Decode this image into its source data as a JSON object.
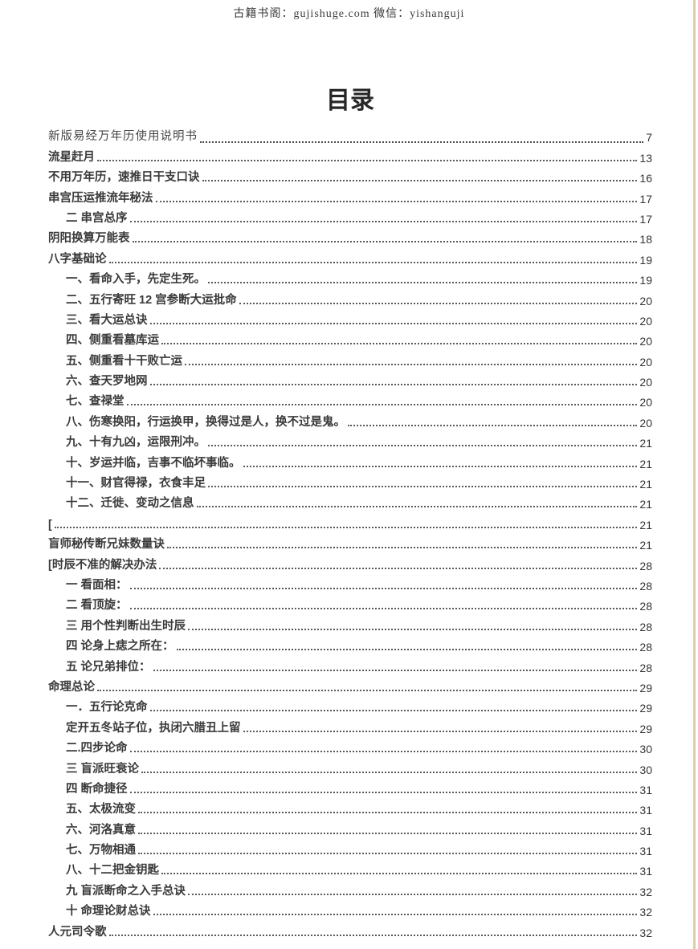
{
  "header": {
    "text": "古籍书阁：gujishuge.com 微信：yishanguji"
  },
  "title": "目录",
  "colors": {
    "page_background": "#ffffff",
    "edge_line": "#d9cfa8",
    "text": "#3a3a3a"
  },
  "toc": [
    {
      "label": "新版易经万年历使用说明书",
      "page": "7",
      "indent": 0,
      "serif": true
    },
    {
      "label": "流星赶月",
      "page": "13",
      "indent": 0
    },
    {
      "label": "不用万年历，速推日干支口诀",
      "page": "16",
      "indent": 0
    },
    {
      "label": "串宫压运推流年秘法",
      "page": "17",
      "indent": 0
    },
    {
      "label": "二 串宫总序",
      "page": "17",
      "indent": 1
    },
    {
      "label": "阴阳换算万能表",
      "page": "18",
      "indent": 0
    },
    {
      "label": "八字基础论",
      "page": "19",
      "indent": 0
    },
    {
      "label": "一、看命入手，先定生死。",
      "page": "19",
      "indent": 1
    },
    {
      "label": "二、五行寄旺 12 宫参断大运批命",
      "page": "20",
      "indent": 1
    },
    {
      "label": "三、看大运总诀",
      "page": "20",
      "indent": 1
    },
    {
      "label": "四、侧重看墓库运",
      "page": "20",
      "indent": 1
    },
    {
      "label": "五、侧重看十干败亡运",
      "page": "20",
      "indent": 1
    },
    {
      "label": "六、查天罗地网",
      "page": "20",
      "indent": 1
    },
    {
      "label": "七、查禄堂",
      "page": "20",
      "indent": 1
    },
    {
      "label": "八、伤寒换阳，行运换甲，换得过是人，换不过是鬼。",
      "page": "20",
      "indent": 1
    },
    {
      "label": "九、十有九凶，运限刑冲。",
      "page": "21",
      "indent": 1
    },
    {
      "label": "十、岁运并临，吉事不临坏事临。",
      "page": "21",
      "indent": 1
    },
    {
      "label": "十一、财官得禄，衣食丰足",
      "page": "21",
      "indent": 1
    },
    {
      "label": "十二、迁徙、变动之信息",
      "page": "21",
      "indent": 1
    },
    {
      "label": "[",
      "page": "21",
      "indent": 0
    },
    {
      "label": "盲师秘传断兄妹数量诀",
      "page": "21",
      "indent": 0
    },
    {
      "label": "[时辰不准的解决办法",
      "page": "28",
      "indent": 0
    },
    {
      "label": "一 看面相：",
      "page": "28",
      "indent": 1
    },
    {
      "label": "二 看顶旋：",
      "page": "28",
      "indent": 1
    },
    {
      "label": "三 用个性判断出生时辰",
      "page": "28",
      "indent": 1
    },
    {
      "label": "四 论身上痣之所在：",
      "page": "28",
      "indent": 1
    },
    {
      "label": "五 论兄弟排位：",
      "page": "28",
      "indent": 1
    },
    {
      "label": "命理总论",
      "page": "29",
      "indent": 0
    },
    {
      "label": "一．五行论克命",
      "page": "29",
      "indent": 1
    },
    {
      "label": "定开五冬站子位，执闭六腊丑上留",
      "page": "29",
      "indent": 1
    },
    {
      "label": "二.四步论命",
      "page": "30",
      "indent": 1
    },
    {
      "label": "三 盲派旺衰论",
      "page": "30",
      "indent": 1
    },
    {
      "label": "四 断命捷径",
      "page": "31",
      "indent": 1
    },
    {
      "label": "五、太极流变",
      "page": "31",
      "indent": 1
    },
    {
      "label": "六、河洛真意",
      "page": "31",
      "indent": 1
    },
    {
      "label": "七、万物相通",
      "page": "31",
      "indent": 1
    },
    {
      "label": "八、十二把金钥匙",
      "page": "31",
      "indent": 1
    },
    {
      "label": "九 盲派断命之入手总诀",
      "page": "32",
      "indent": 1
    },
    {
      "label": "十 命理论财总诀",
      "page": "32",
      "indent": 1
    },
    {
      "label": "人元司令歌",
      "page": "32",
      "indent": 0
    }
  ]
}
